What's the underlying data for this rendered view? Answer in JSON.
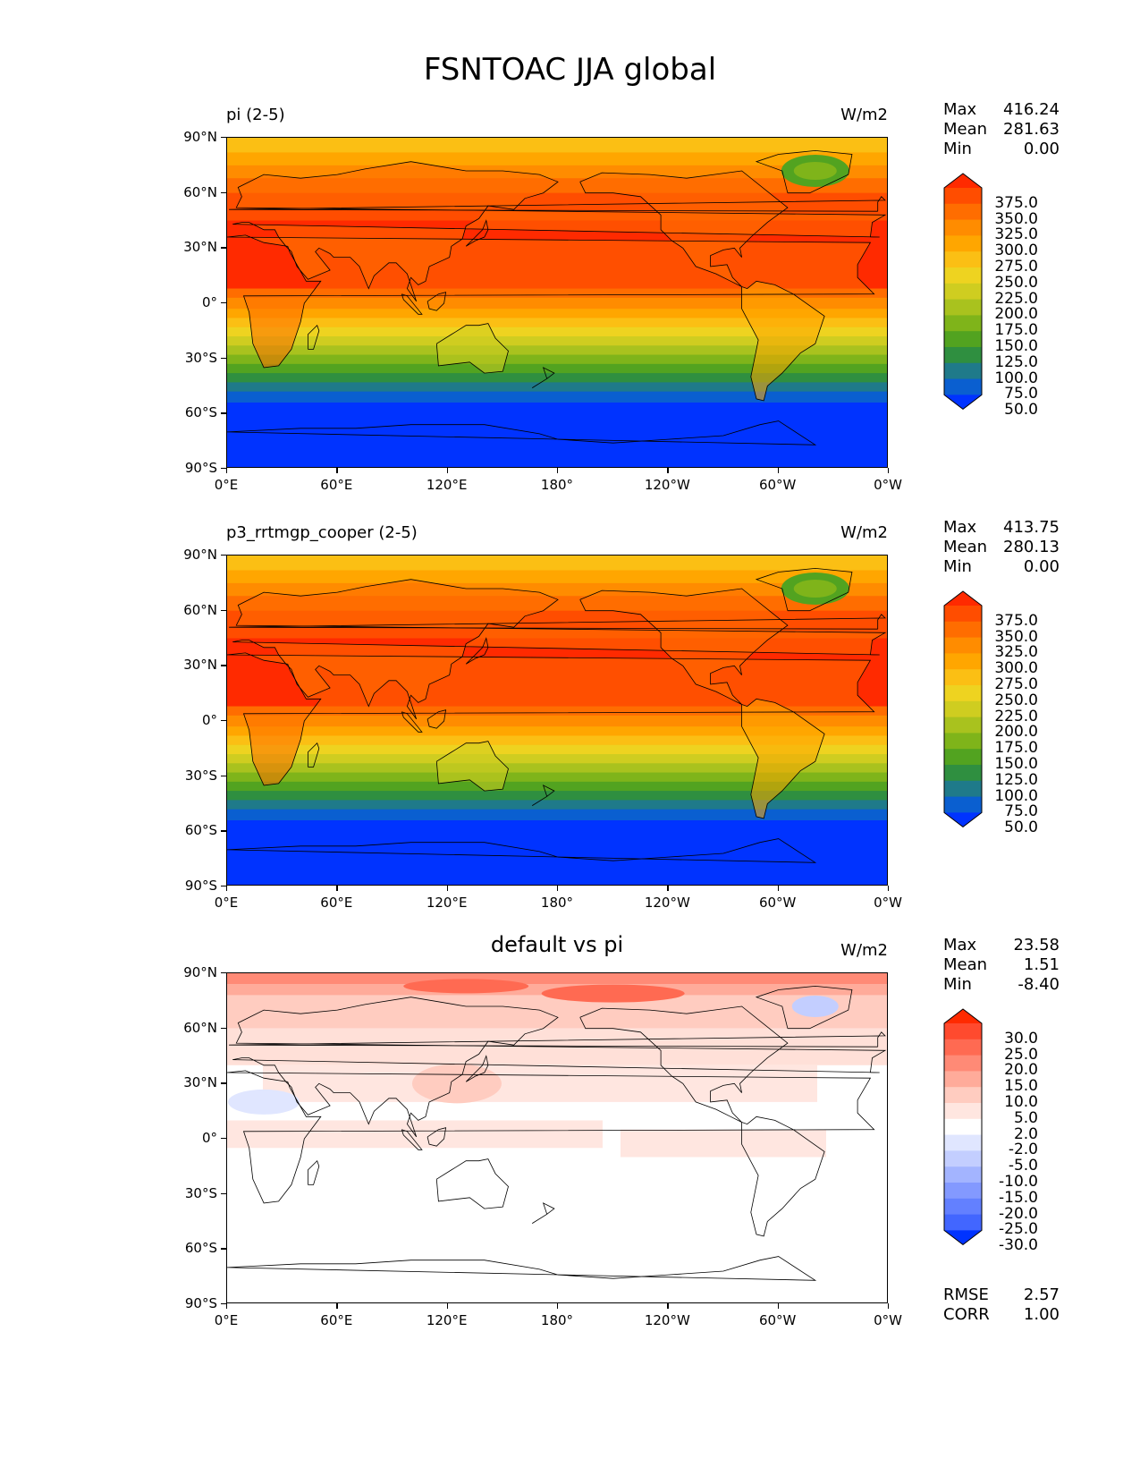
{
  "figure_title": "FSNTOAC JJA global",
  "lat_labels": [
    "90°N",
    "60°N",
    "30°N",
    "0°",
    "30°S",
    "60°S",
    "90°S"
  ],
  "lon_labels": [
    "0°E",
    "60°E",
    "120°E",
    "180°",
    "120°W",
    "60°W",
    "0°W"
  ],
  "panels": [
    {
      "title_left": "pi (2-5)",
      "title_center": "",
      "units": "W/m2",
      "stats": [
        [
          "Max",
          "416.24"
        ],
        [
          "Mean",
          "281.63"
        ],
        [
          "Min",
          "0.00"
        ]
      ],
      "levels": [
        "375.0",
        "350.0",
        "325.0",
        "300.0",
        "275.0",
        "250.0",
        "225.0",
        "200.0",
        "175.0",
        "150.0",
        "125.0",
        "100.0",
        "75.0",
        "50.0"
      ],
      "colors": [
        "#ff2a00",
        "#ff4d00",
        "#ff6d00",
        "#ff8c00",
        "#ffa600",
        "#fbbf14",
        "#eed320",
        "#cfcd20",
        "#a9c21e",
        "#7fb41a",
        "#52a320",
        "#2f8f40",
        "#1f7a8a",
        "#0a5fd0",
        "#0033ff"
      ],
      "map_type": "abs"
    },
    {
      "title_left": "p3_rrtmgp_cooper (2-5)",
      "title_center": "",
      "units": "W/m2",
      "stats": [
        [
          "Max",
          "413.75"
        ],
        [
          "Mean",
          "280.13"
        ],
        [
          "Min",
          "0.00"
        ]
      ],
      "levels": [
        "375.0",
        "350.0",
        "325.0",
        "300.0",
        "275.0",
        "250.0",
        "225.0",
        "200.0",
        "175.0",
        "150.0",
        "125.0",
        "100.0",
        "75.0",
        "50.0"
      ],
      "colors": [
        "#ff2a00",
        "#ff4d00",
        "#ff6d00",
        "#ff8c00",
        "#ffa600",
        "#fbbf14",
        "#eed320",
        "#cfcd20",
        "#a9c21e",
        "#7fb41a",
        "#52a320",
        "#2f8f40",
        "#1f7a8a",
        "#0a5fd0",
        "#0033ff"
      ],
      "map_type": "abs"
    },
    {
      "title_left": "",
      "title_center": "default vs pi",
      "units": "W/m2",
      "stats": [
        [
          "Max",
          "23.58"
        ],
        [
          "Mean",
          "1.51"
        ],
        [
          "Min",
          "-8.40"
        ]
      ],
      "levels": [
        "30.0",
        "25.0",
        "20.0",
        "15.0",
        "10.0",
        "5.0",
        "2.0",
        "-2.0",
        "-5.0",
        "-10.0",
        "-15.0",
        "-20.0",
        "-25.0",
        "-30.0"
      ],
      "colors": [
        "#ff2a00",
        "#ff4a2e",
        "#ff6a52",
        "#ff8a76",
        "#ffab9a",
        "#ffccc0",
        "#ffe6e0",
        "#ffffff",
        "#e0e6ff",
        "#c3ceff",
        "#a3b4ff",
        "#8399ff",
        "#6380ff",
        "#4266ff",
        "#0033ff"
      ],
      "map_type": "diff",
      "bottom_stats": [
        [
          "RMSE",
          "2.57"
        ],
        [
          "CORR",
          "1.00"
        ]
      ]
    }
  ]
}
